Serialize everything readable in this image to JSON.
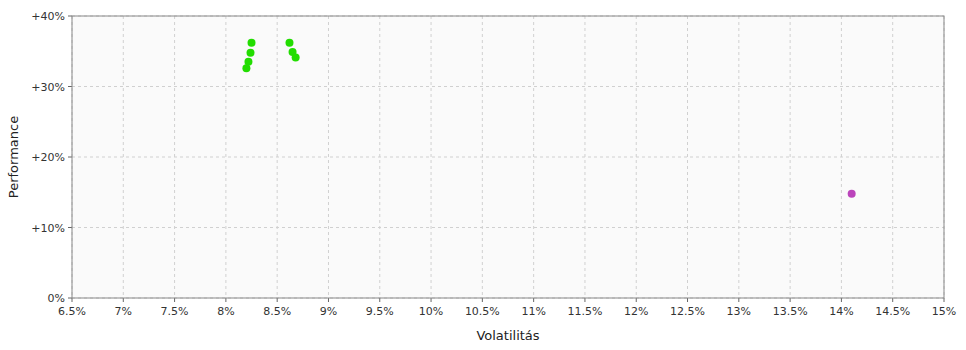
{
  "chart_data": {
    "type": "scatter",
    "xlabel": "Volatilitás",
    "ylabel": "Performance",
    "series": [
      {
        "color": "#22dd00",
        "x": [
          0.0825,
          0.0824,
          0.0822,
          0.082,
          0.0862,
          0.0865,
          0.0868
        ],
        "values": [
          0.362,
          0.348,
          0.335,
          0.326,
          0.362,
          0.349,
          0.341
        ]
      },
      {
        "color": "#bb44bb",
        "x": [
          0.141
        ],
        "values": [
          0.148
        ]
      }
    ],
    "xlim": [
      0.065,
      0.15
    ],
    "ylim": [
      0.0,
      0.4
    ],
    "xticks": [
      {
        "value": 0.065,
        "label": "6.5%"
      },
      {
        "value": 0.07,
        "label": "7%"
      },
      {
        "value": 0.075,
        "label": "7.5%"
      },
      {
        "value": 0.08,
        "label": "8%"
      },
      {
        "value": 0.085,
        "label": "8.5%"
      },
      {
        "value": 0.09,
        "label": "9%"
      },
      {
        "value": 0.095,
        "label": "9.5%"
      },
      {
        "value": 0.1,
        "label": "10%"
      },
      {
        "value": 0.105,
        "label": "10.5%"
      },
      {
        "value": 0.11,
        "label": "11%"
      },
      {
        "value": 0.115,
        "label": "11.5%"
      },
      {
        "value": 0.12,
        "label": "12%"
      },
      {
        "value": 0.125,
        "label": "12.5%"
      },
      {
        "value": 0.13,
        "label": "13%"
      },
      {
        "value": 0.135,
        "label": "13.5%"
      },
      {
        "value": 0.14,
        "label": "14%"
      },
      {
        "value": 0.145,
        "label": "14.5%"
      },
      {
        "value": 0.15,
        "label": "15%"
      }
    ],
    "yticks": [
      {
        "value": 0.0,
        "label": "0%"
      },
      {
        "value": 0.1,
        "label": "+10%"
      },
      {
        "value": 0.2,
        "label": "+20%"
      },
      {
        "value": 0.3,
        "label": "+30%"
      },
      {
        "value": 0.4,
        "label": "+40%"
      }
    ],
    "grid": true
  }
}
